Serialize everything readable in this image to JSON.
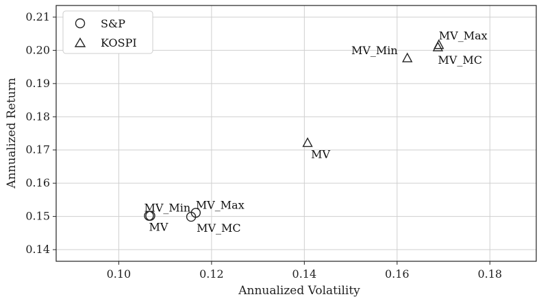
{
  "chart_data": {
    "type": "scatter",
    "title": "",
    "xlabel": "Annualized Volatility",
    "ylabel": "Annualized Return",
    "xlim": [
      0.0865,
      0.19
    ],
    "ylim": [
      0.1365,
      0.2135
    ],
    "xticks": [
      0.1,
      0.12,
      0.14,
      0.16,
      0.18
    ],
    "yticks": [
      0.14,
      0.15,
      0.16,
      0.17,
      0.18,
      0.19,
      0.2,
      0.21
    ],
    "grid": true,
    "legend_position": "top-left",
    "series": [
      {
        "name": "S&P",
        "marker": "circle",
        "points": [
          {
            "label": "MV",
            "x": 0.1065,
            "y": 0.1502
          },
          {
            "label": "MV_Min",
            "x": 0.1068,
            "y": 0.1502
          },
          {
            "label": "MV_MC",
            "x": 0.1156,
            "y": 0.1499
          },
          {
            "label": "MV_Max",
            "x": 0.1166,
            "y": 0.1511
          }
        ]
      },
      {
        "name": "KOSPI",
        "marker": "triangle",
        "points": [
          {
            "label": "MV",
            "x": 0.1407,
            "y": 0.1721
          },
          {
            "label": "MV_Min",
            "x": 0.1622,
            "y": 0.1976
          },
          {
            "label": "MV_MC",
            "x": 0.1688,
            "y": 0.2009
          },
          {
            "label": "MV_Max",
            "x": 0.169,
            "y": 0.2016
          }
        ]
      }
    ]
  },
  "annotations": [
    {
      "text": "MV_Min"
    },
    {
      "text": "MV"
    },
    {
      "text": "MV_Max"
    },
    {
      "text": "MV_MC"
    },
    {
      "text": "MV"
    },
    {
      "text": "MV_Min"
    },
    {
      "text": "MV_Max"
    },
    {
      "text": "MV_MC"
    }
  ]
}
